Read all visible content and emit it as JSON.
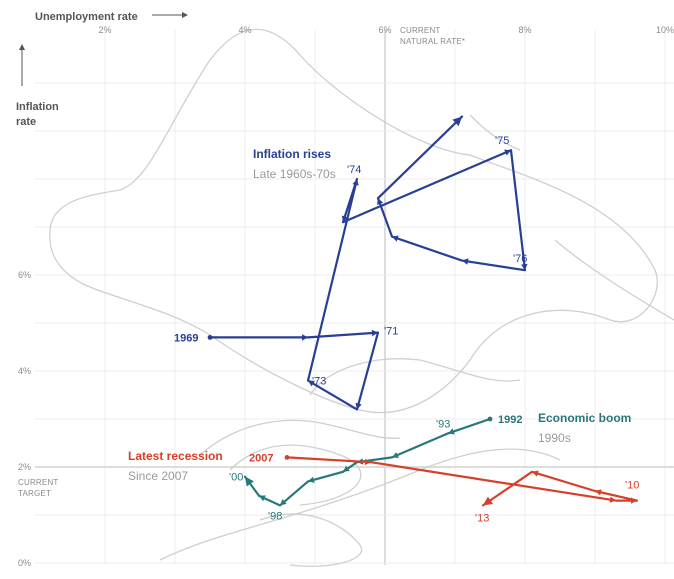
{
  "chart_data": {
    "type": "line",
    "xlabel": "Unemployment rate",
    "ylabel_line1": "Inflation",
    "ylabel_line2": "rate",
    "x_ticks": [
      "2%",
      "4%",
      "6%",
      "8%",
      "10%"
    ],
    "y_ticks": [
      "0%",
      "2%",
      "4%",
      "6%"
    ],
    "xlim": [
      1,
      10
    ],
    "ylim": [
      0,
      10.2
    ],
    "grid": true,
    "reference_x": {
      "value": 6,
      "label_line1": "CURRENT",
      "label_line2": "NATURAL RATE*"
    },
    "reference_y": {
      "value": 2,
      "label_line1": "CURRENT",
      "label_line2": "TARGET"
    },
    "colors": {
      "blue": "#283f94",
      "teal": "#27787a",
      "red": "#d6402a",
      "ghost": "#cfcfcf",
      "grid": "#eeeeee"
    },
    "series": [
      {
        "name": "Inflation rises",
        "subtitle": "Late 1960s-70s",
        "color": "#283f94",
        "points": [
          {
            "x": 3.5,
            "y": 4.7,
            "label": "1969"
          },
          {
            "x": 4.9,
            "y": 4.7
          },
          {
            "x": 5.9,
            "y": 4.8,
            "label": "'71"
          },
          {
            "x": 5.6,
            "y": 3.2
          },
          {
            "x": 4.9,
            "y": 3.8,
            "label": "'73"
          },
          {
            "x": 5.6,
            "y": 8.0,
            "label": "'74"
          },
          {
            "x": 5.4,
            "y": 7.1
          },
          {
            "x": 7.8,
            "y": 8.6,
            "label": "'75"
          },
          {
            "x": 8.0,
            "y": 6.1,
            "label": "'76"
          },
          {
            "x": 7.1,
            "y": 6.3
          },
          {
            "x": 6.1,
            "y": 6.8
          },
          {
            "x": 5.9,
            "y": 7.6
          },
          {
            "x": 7.1,
            "y": 9.3
          }
        ]
      },
      {
        "name": "Economic boom",
        "subtitle": "1990s",
        "color": "#27787a",
        "points": [
          {
            "x": 7.5,
            "y": 3.0,
            "label": "1992"
          },
          {
            "x": 6.9,
            "y": 2.7,
            "label": "'93"
          },
          {
            "x": 6.1,
            "y": 2.2
          },
          {
            "x": 5.6,
            "y": 2.1
          },
          {
            "x": 5.4,
            "y": 1.9
          },
          {
            "x": 4.9,
            "y": 1.7
          },
          {
            "x": 4.5,
            "y": 1.2,
            "label": "'98"
          },
          {
            "x": 4.2,
            "y": 1.4
          },
          {
            "x": 4.0,
            "y": 1.8,
            "label": "'00"
          }
        ]
      },
      {
        "name": "Latest recession",
        "subtitle": "Since 2007",
        "color": "#d6402a",
        "points": [
          {
            "x": 4.6,
            "y": 2.2,
            "label": "2007"
          },
          {
            "x": 5.8,
            "y": 2.1
          },
          {
            "x": 9.3,
            "y": 1.3
          },
          {
            "x": 9.6,
            "y": 1.3,
            "label": "'10"
          },
          {
            "x": 9.0,
            "y": 1.5
          },
          {
            "x": 8.1,
            "y": 1.9
          },
          {
            "x": 7.4,
            "y": 1.2,
            "label": "'13"
          }
        ]
      }
    ]
  }
}
